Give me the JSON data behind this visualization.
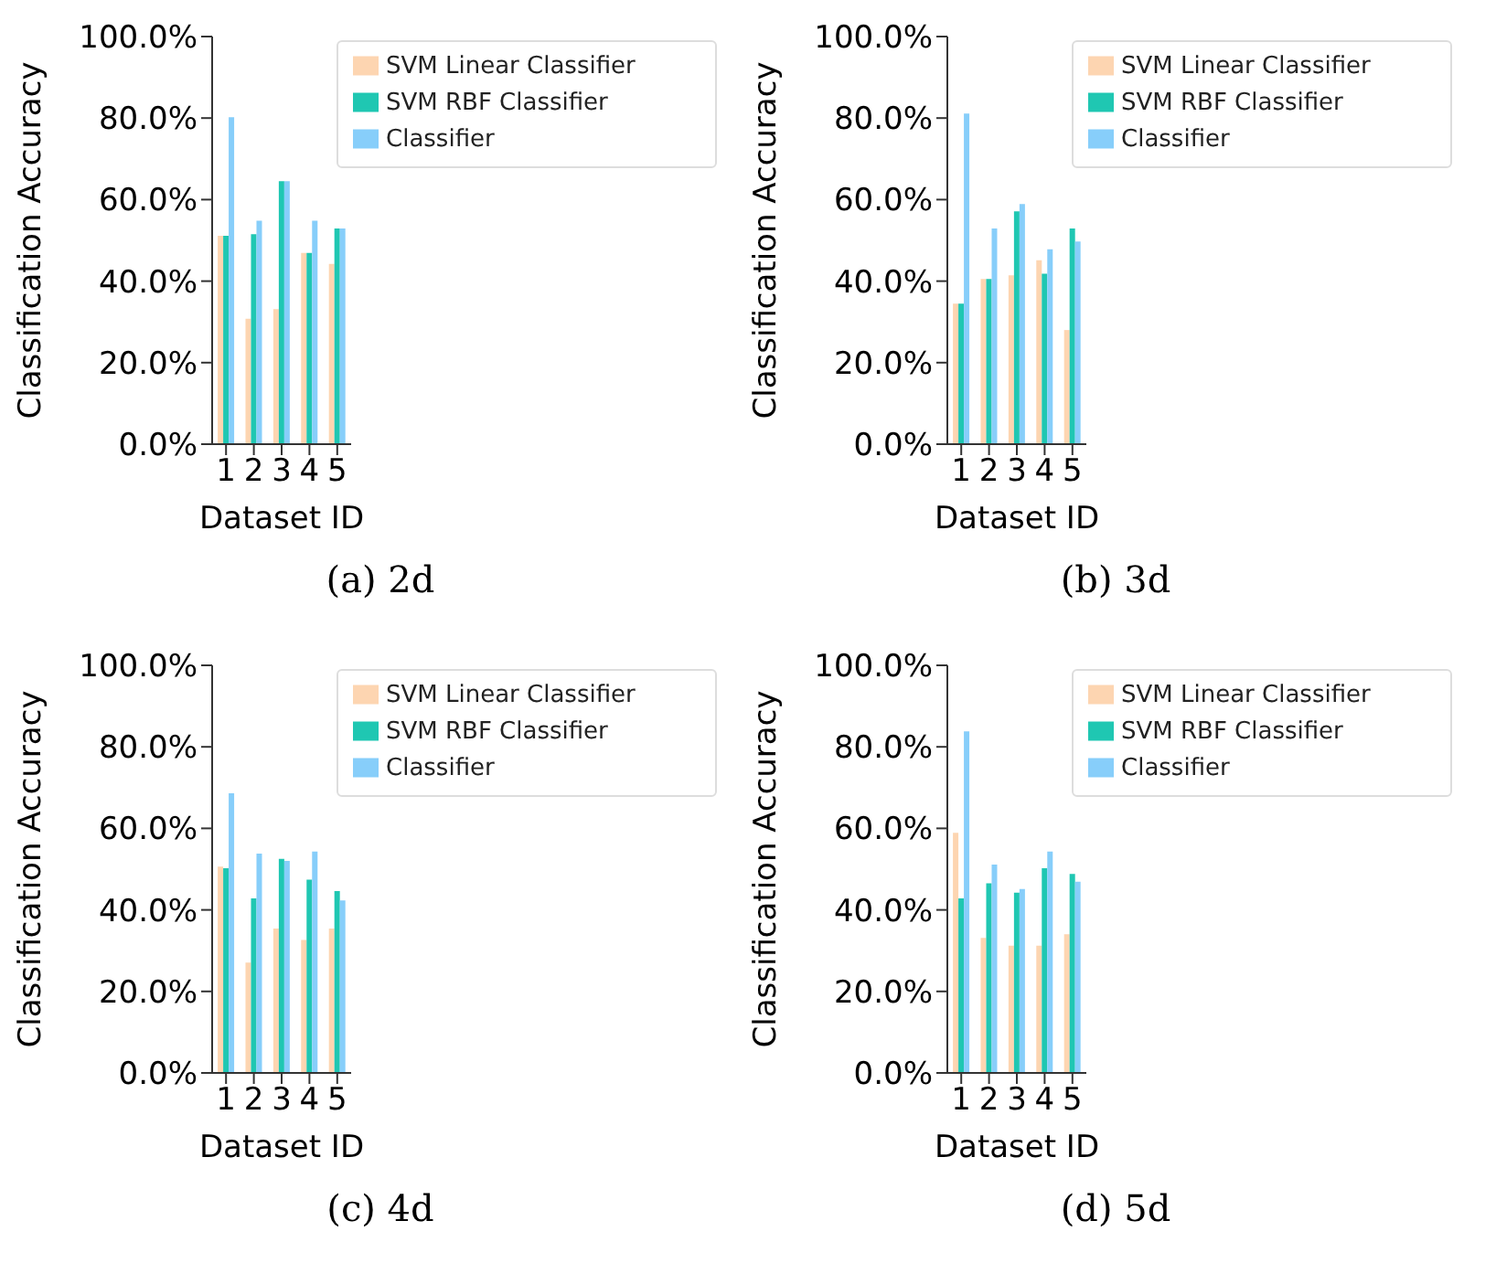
{
  "chart_data": [
    {
      "type": "bar",
      "xlabel": "Dataset ID",
      "ylabel": "Classification Accuracy",
      "annotations": [
        "(a) 2d"
      ],
      "categories": [
        "1",
        "2",
        "3",
        "4",
        "5"
      ],
      "legend": "top right",
      "grid": false,
      "ylim": [
        0,
        100
      ],
      "yticks": [
        {
          "value": 0,
          "label": "0.0%"
        },
        {
          "value": 20,
          "label": "20.0%"
        },
        {
          "value": 40,
          "label": "40.0%"
        },
        {
          "value": 60,
          "label": "60.0%"
        },
        {
          "value": 80,
          "label": "80.0%"
        },
        {
          "value": 100,
          "label": "100.0%"
        }
      ],
      "series": [
        {
          "name": "SVM Linear Classifier",
          "color": "#fdd5b1",
          "values": [
            51.1,
            30.8,
            33.1,
            46.9,
            44.2
          ]
        },
        {
          "name": "SVM RBF Classifier",
          "color": "#1fc7b2",
          "values": [
            51.1,
            51.5,
            64.5,
            46.9,
            52.9
          ]
        },
        {
          "name": "Classifier",
          "color": "#87cefa",
          "values": [
            80.2,
            54.8,
            64.5,
            54.8,
            52.9
          ]
        }
      ]
    },
    {
      "type": "bar",
      "xlabel": "Dataset ID",
      "ylabel": "Classification Accuracy",
      "annotations": [
        "(b) 3d"
      ],
      "categories": [
        "1",
        "2",
        "3",
        "4",
        "5"
      ],
      "legend": "top right",
      "grid": false,
      "ylim": [
        0,
        100
      ],
      "yticks": [
        {
          "value": 0,
          "label": "0.0%"
        },
        {
          "value": 20,
          "label": "20.0%"
        },
        {
          "value": 40,
          "label": "40.0%"
        },
        {
          "value": 60,
          "label": "60.0%"
        },
        {
          "value": 80,
          "label": "80.0%"
        },
        {
          "value": 100,
          "label": "100.0%"
        }
      ],
      "series": [
        {
          "name": "SVM Linear Classifier",
          "color": "#fdd5b1",
          "values": [
            34.5,
            40.5,
            41.4,
            45.1,
            28.0
          ]
        },
        {
          "name": "SVM RBF Classifier",
          "color": "#1fc7b2",
          "values": [
            34.5,
            40.5,
            57.1,
            41.8,
            52.9
          ]
        },
        {
          "name": "Classifier",
          "color": "#87cefa",
          "values": [
            81.1,
            52.9,
            58.9,
            47.8,
            49.7
          ]
        }
      ]
    },
    {
      "type": "bar",
      "xlabel": "Dataset ID",
      "ylabel": "Classification Accuracy",
      "annotations": [
        "(c) 4d"
      ],
      "categories": [
        "1",
        "2",
        "3",
        "4",
        "5"
      ],
      "legend": "top right",
      "grid": false,
      "ylim": [
        0,
        100
      ],
      "yticks": [
        {
          "value": 0,
          "label": "0.0%"
        },
        {
          "value": 20,
          "label": "20.0%"
        },
        {
          "value": 40,
          "label": "40.0%"
        },
        {
          "value": 60,
          "label": "60.0%"
        },
        {
          "value": 80,
          "label": "80.0%"
        },
        {
          "value": 100,
          "label": "100.0%"
        }
      ],
      "series": [
        {
          "name": "SVM Linear Classifier",
          "color": "#fdd5b1",
          "values": [
            50.6,
            27.1,
            35.4,
            32.6,
            35.4
          ]
        },
        {
          "name": "SVM RBF Classifier",
          "color": "#1fc7b2",
          "values": [
            50.2,
            42.8,
            52.5,
            47.4,
            44.6
          ]
        },
        {
          "name": "Classifier",
          "color": "#87cefa",
          "values": [
            68.6,
            53.8,
            52.0,
            54.3,
            42.3
          ]
        }
      ]
    },
    {
      "type": "bar",
      "xlabel": "Dataset ID",
      "ylabel": "Classification Accuracy",
      "annotations": [
        "(d) 5d"
      ],
      "categories": [
        "1",
        "2",
        "3",
        "4",
        "5"
      ],
      "legend": "top right",
      "grid": false,
      "ylim": [
        0,
        100
      ],
      "yticks": [
        {
          "value": 0,
          "label": "0.0%"
        },
        {
          "value": 20,
          "label": "20.0%"
        },
        {
          "value": 40,
          "label": "40.0%"
        },
        {
          "value": 60,
          "label": "60.0%"
        },
        {
          "value": 80,
          "label": "80.0%"
        },
        {
          "value": 100,
          "label": "100.0%"
        }
      ],
      "series": [
        {
          "name": "SVM Linear Classifier",
          "color": "#fdd5b1",
          "values": [
            58.9,
            33.1,
            31.2,
            31.2,
            34.0
          ]
        },
        {
          "name": "SVM RBF Classifier",
          "color": "#1fc7b2",
          "values": [
            42.8,
            46.5,
            44.2,
            50.2,
            48.8
          ]
        },
        {
          "name": "Classifier",
          "color": "#87cefa",
          "values": [
            83.8,
            51.1,
            45.1,
            54.3,
            46.9
          ]
        }
      ]
    }
  ]
}
